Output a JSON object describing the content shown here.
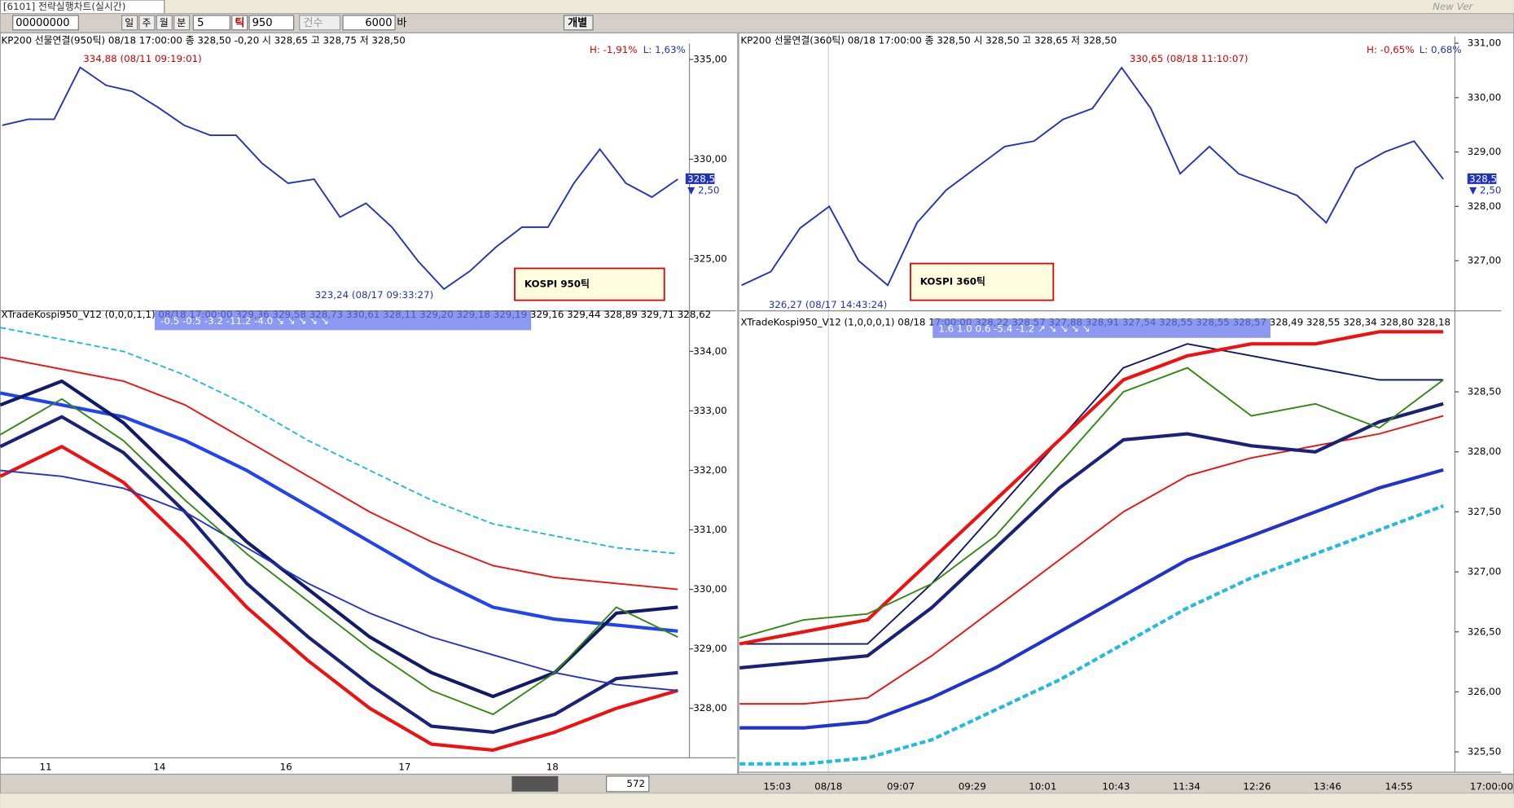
{
  "window": {
    "title": "[6101] 전략실행차트(실시간)",
    "version": "New Ver"
  },
  "toolbar": {
    "code": "00000000",
    "periods": [
      "일",
      "주",
      "월",
      "분"
    ],
    "minute": "5",
    "tick_button": "틱",
    "tick": "950",
    "count_label": "건수",
    "count": "6000",
    "bar_label": "바",
    "individual": "개별"
  },
  "panels": [
    {
      "header": "KP200 선물연결(950틱) 08/18 17:00:00  종 328,50 -0,20  시 328,65 고 328,75 저 328,50",
      "tag": "KOSPI 950틱",
      "high_label": "334,88 (08/11 09:19:01)",
      "low_label": "323,24 (08/17 09:33:27)",
      "h_pct": "H: -1,91%",
      "l_pct": "L: 1,63%",
      "last": "328,50",
      "change": "▼ 2,50",
      "price": {
        "ylim": [
          322.6,
          335.8
        ],
        "yticks": [
          {
            "value": 335,
            "label": "335,00"
          },
          {
            "value": 330,
            "label": "330,00"
          },
          {
            "value": 325,
            "label": "325,00"
          }
        ],
        "values": [
          331.7,
          332.0,
          332.0,
          334.6,
          333.7,
          333.4,
          332.6,
          331.7,
          331.2,
          331.2,
          329.8,
          328.8,
          329.0,
          327.1,
          327.8,
          326.6,
          324.9,
          323.5,
          324.4,
          325.6,
          326.6,
          326.6,
          328.8,
          330.5,
          328.8,
          328.1,
          329.0
        ]
      },
      "indicator": {
        "header": "XTradeKospi950_V12  (0,0,0,1,1)  08/18 17:00:00  329,36  329,58  328,73  330,61  328,11  329,20  329,18  329,19  329,16  329,44  328,89  329,71  328,62",
        "overlay": "-0.5  -0.5  -3.2  -11.2  -4.0   ↘  ↘  ↘  ↘  ↘",
        "ylim": [
          327.17,
          334.47
        ],
        "yticks": [
          {
            "value": 334,
            "label": "334,00"
          },
          {
            "value": 333,
            "label": "333,00"
          },
          {
            "value": 332,
            "label": "332,00"
          },
          {
            "value": 331,
            "label": "331,00"
          },
          {
            "value": 330,
            "label": "330,00"
          },
          {
            "value": 329,
            "label": "329,00"
          },
          {
            "value": 328,
            "label": "328,00"
          }
        ],
        "series": [
          {
            "color": "#22bbdd",
            "values": [
              334.4,
              334.2,
              334.0,
              333.6,
              333.1,
              332.5,
              332.0,
              331.5,
              331.1,
              330.9,
              330.7,
              330.6
            ]
          },
          {
            "color": "#ee1111",
            "values": [
              333.9,
              333.7,
              333.5,
              333.1,
              332.5,
              331.9,
              331.3,
              330.8,
              330.4,
              330.2,
              330.1,
              330.0
            ]
          },
          {
            "color": "#2244ee",
            "values": [
              333.3,
              333.1,
              332.9,
              332.5,
              332.0,
              331.4,
              330.8,
              330.2,
              329.7,
              329.5,
              329.4,
              329.3
            ]
          },
          {
            "color": "#111a66",
            "values": [
              333.1,
              333.5,
              332.8,
              331.8,
              330.8,
              330.0,
              329.2,
              328.6,
              328.2,
              328.6,
              329.6,
              329.7
            ]
          },
          {
            "color": "#1a2277",
            "values": [
              332.4,
              332.9,
              332.3,
              331.3,
              330.1,
              329.2,
              328.4,
              327.7,
              327.6,
              327.9,
              328.5,
              328.6
            ]
          },
          {
            "color": "#ee1111",
            "values": [
              331.9,
              332.4,
              331.8,
              330.8,
              329.7,
              328.8,
              328.0,
              327.4,
              327.3,
              327.6,
              328.0,
              328.3
            ]
          },
          {
            "color": "#2233cc",
            "values": [
              332.0,
              331.9,
              331.7,
              331.3,
              330.7,
              330.1,
              329.6,
              329.2,
              328.9,
              328.6,
              328.4,
              328.3
            ]
          },
          {
            "color": "#338811",
            "values": [
              332.6,
              333.2,
              332.5,
              331.5,
              330.6,
              329.8,
              329.0,
              328.3,
              327.9,
              328.6,
              329.7,
              329.2
            ]
          }
        ]
      },
      "xticks": [
        "11",
        "14",
        "16",
        "17",
        "18"
      ]
    },
    {
      "header": "KP200 선물연결(360틱) 08/18 17:00:00  종 328,50  시 328,50 고 328,65 저 328,50",
      "tag": "KOSPI 360틱",
      "high_label": "330,65 (08/18 11:10:07)",
      "low_label": "326,27 (08/17 14:43:24)",
      "h_pct": "H: -0,65%",
      "l_pct": "L: 0,68%",
      "last": "328,50",
      "change": "▼ 2,50",
      "price": {
        "ylim": [
          326.15,
          331.12
        ],
        "yticks": [
          {
            "value": 331,
            "label": "331,00"
          },
          {
            "value": 330,
            "label": "330,00"
          },
          {
            "value": 329,
            "label": "329,00"
          },
          {
            "value": 328,
            "label": "328,00"
          },
          {
            "value": 327,
            "label": "327,00"
          }
        ],
        "values": [
          326.55,
          326.8,
          327.6,
          328.0,
          327.0,
          326.55,
          327.7,
          328.3,
          328.7,
          329.1,
          329.2,
          329.6,
          329.8,
          330.55,
          329.8,
          328.6,
          329.1,
          328.6,
          328.4,
          328.2,
          327.7,
          328.7,
          329.0,
          329.2,
          328.5
        ]
      },
      "indicator": {
        "header": "XTradeKospi950_V12  (1,0,0,0,1)  08/18 17:00:00  328,22  328,57  327,88  328,91  327,54  328,55  328,55  328,57  328,49  328,55  328,34  328,80  328,18",
        "overlay": "1.6  1.0  0.6  -5.4  -1.2  ↗  ↘  ↘  ↘  ↘",
        "ylim": [
          325.33,
          329.03
        ],
        "yticks": [
          {
            "value": 328.5,
            "label": "328,50"
          },
          {
            "value": 328,
            "label": "328,00"
          },
          {
            "value": 327.5,
            "label": "327,50"
          },
          {
            "value": 327,
            "label": "327,00"
          },
          {
            "value": 326.5,
            "label": "326,50"
          },
          {
            "value": 326,
            "label": "326,00"
          },
          {
            "value": 325.5,
            "label": "325,50"
          }
        ],
        "series": [
          {
            "color": "#111a66",
            "values": [
              326.4,
              326.4,
              326.4,
              326.9,
              327.5,
              328.1,
              328.7,
              328.9,
              328.8,
              328.7,
              328.6,
              328.6
            ]
          },
          {
            "color": "#ee1111",
            "values": [
              325.9,
              325.9,
              325.95,
              326.3,
              326.7,
              327.1,
              327.5,
              327.8,
              327.95,
              328.05,
              328.15,
              328.3
            ]
          },
          {
            "color": "#2233cc",
            "values": [
              325.7,
              325.7,
              325.75,
              325.95,
              326.2,
              326.5,
              326.8,
              327.1,
              327.3,
              327.5,
              327.7,
              327.85
            ]
          },
          {
            "color": "#22bbdd",
            "values": [
              325.4,
              325.4,
              325.45,
              325.6,
              325.85,
              326.1,
              326.4,
              326.7,
              326.95,
              327.15,
              327.35,
              327.55
            ]
          },
          {
            "color": "#ee1111",
            "values": [
              326.4,
              326.5,
              326.6,
              327.1,
              327.6,
              328.1,
              328.6,
              328.8,
              328.9,
              328.9,
              329.0,
              329.0
            ]
          },
          {
            "color": "#1a2277",
            "values": [
              326.2,
              326.25,
              326.3,
              326.7,
              327.2,
              327.7,
              328.1,
              328.15,
              328.05,
              328.0,
              328.25,
              328.4
            ]
          },
          {
            "color": "#338811",
            "values": [
              326.45,
              326.6,
              326.65,
              326.9,
              327.3,
              327.9,
              328.5,
              328.7,
              328.3,
              328.4,
              328.2,
              328.6
            ]
          }
        ]
      },
      "xticks": [
        "15:03",
        "08/18",
        "09:07",
        "09:29",
        "10:01",
        "10:43",
        "11:34",
        "12:26",
        "13:46",
        "14:55",
        "17:00:00"
      ]
    }
  ],
  "scroll_count": "572"
}
